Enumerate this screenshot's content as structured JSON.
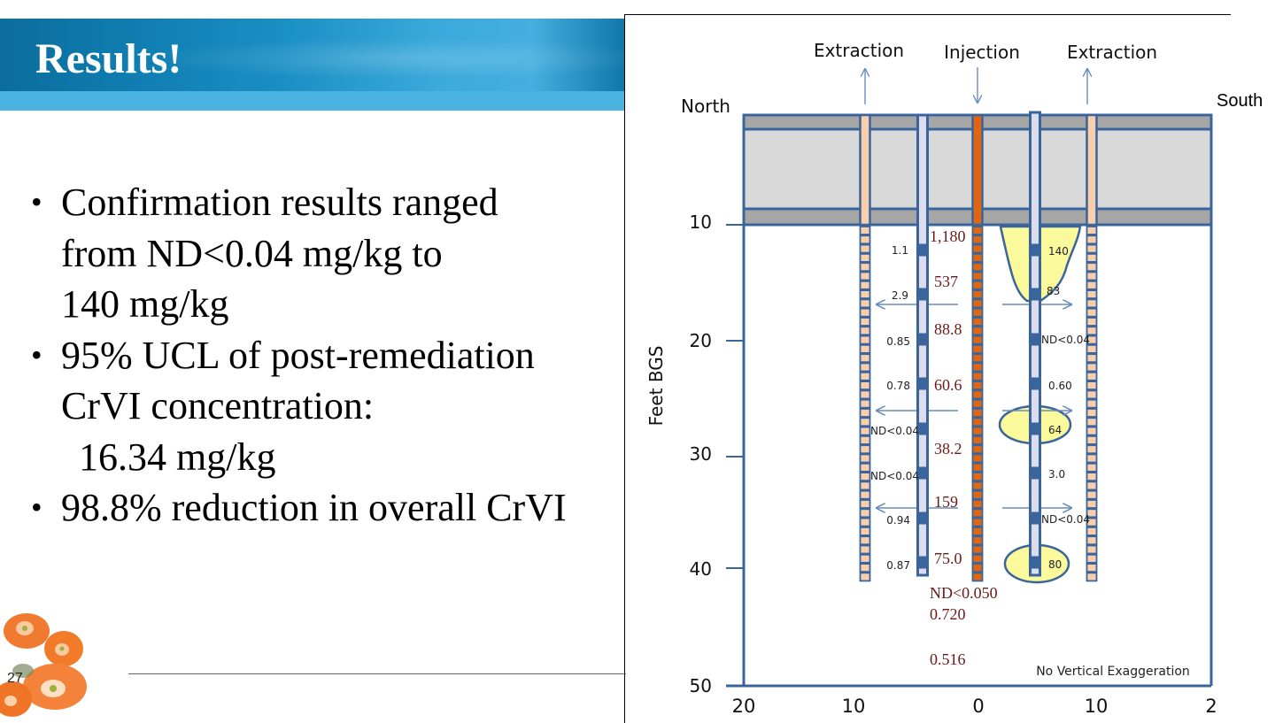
{
  "slide": {
    "title": "Results!",
    "page_number": "27",
    "bullets": [
      {
        "lines": [
          "Confirmation results ranged",
          "from ND<0.04 mg/kg to",
          "140 mg/kg"
        ]
      },
      {
        "lines": [
          "95% UCL of post-remediation",
          "CrVI concentration:",
          "16.34 mg/kg"
        ]
      },
      {
        "lines": [
          "98.8% reduction in overall CrVI"
        ]
      }
    ]
  },
  "diagram": {
    "top_labels": {
      "extraction_left": "Extraction",
      "injection": "Injection",
      "extraction_right": "Extraction"
    },
    "north_label": "North",
    "south_label": "South",
    "y_axis_label": "Feet BGS",
    "y_ticks": [
      "10",
      "20",
      "30",
      "40",
      "50"
    ],
    "x_ticks": [
      "20",
      "10",
      "0",
      "10",
      "2"
    ],
    "note": "No Vertical Exaggeration",
    "left_monitor_values": [
      "1.1",
      "2.9",
      "0.85",
      "0.78",
      "ND<0.04",
      "ND<0.04",
      "0.94",
      "0.87"
    ],
    "right_monitor_values": [
      "140",
      "83",
      "ND<0.04",
      "0.60",
      "64",
      "3.0",
      "ND<0.04",
      "80"
    ],
    "injection_values": [
      "1,180",
      "537",
      "88.8",
      "60.6",
      "38.2",
      "159",
      "75.0",
      "ND<0.050",
      "0.720",
      "0.516"
    ],
    "colors": {
      "outline": "#3a659c",
      "injection_well": "#e0660f",
      "extraction_well": "#f9cfab",
      "monitor_well": "#dcdcec",
      "surface_dark": "#a6a6a6",
      "surface_light": "#d9d9d9",
      "plume": "#fafa9c",
      "injection_text": "#6b1a1a"
    }
  }
}
